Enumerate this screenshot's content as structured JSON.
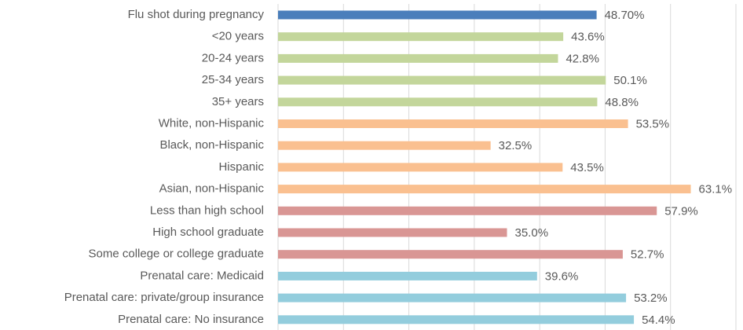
{
  "chart_data": {
    "type": "bar",
    "orientation": "horizontal",
    "categories": [
      "Flu shot during pregnancy",
      "<20 years",
      "20-24 years",
      "25-34 years",
      "35+ years",
      "White, non-Hispanic",
      "Black, non-Hispanic",
      "Hispanic",
      "Asian, non-Hispanic",
      "Less than high school",
      "High school graduate",
      "Some college or college graduate",
      "Prenatal care: Medicaid",
      "Prenatal care: private/group insurance",
      "Prenatal care: No insurance"
    ],
    "values": [
      48.7,
      43.6,
      42.8,
      50.1,
      48.8,
      53.5,
      32.5,
      43.5,
      63.1,
      57.9,
      35.0,
      52.7,
      39.6,
      53.2,
      54.4
    ],
    "value_labels": [
      "48.70%",
      "43.6%",
      "42.8%",
      "50.1%",
      "48.8%",
      "53.5%",
      "32.5%",
      "43.5%",
      "63.1%",
      "57.9%",
      "35.0%",
      "52.7%",
      "39.6%",
      "53.2%",
      "54.4%"
    ],
    "colors": [
      "#4a7ebb",
      "#c3d69b",
      "#c3d69b",
      "#c3d69b",
      "#c3d69b",
      "#fac090",
      "#fac090",
      "#fac090",
      "#fac090",
      "#d99694",
      "#d99694",
      "#d99694",
      "#93cddd",
      "#93cddd",
      "#93cddd"
    ],
    "xlim": [
      0,
      70
    ],
    "xticks": [
      0,
      10,
      20,
      30,
      40,
      50,
      60,
      70
    ],
    "grid": true
  }
}
